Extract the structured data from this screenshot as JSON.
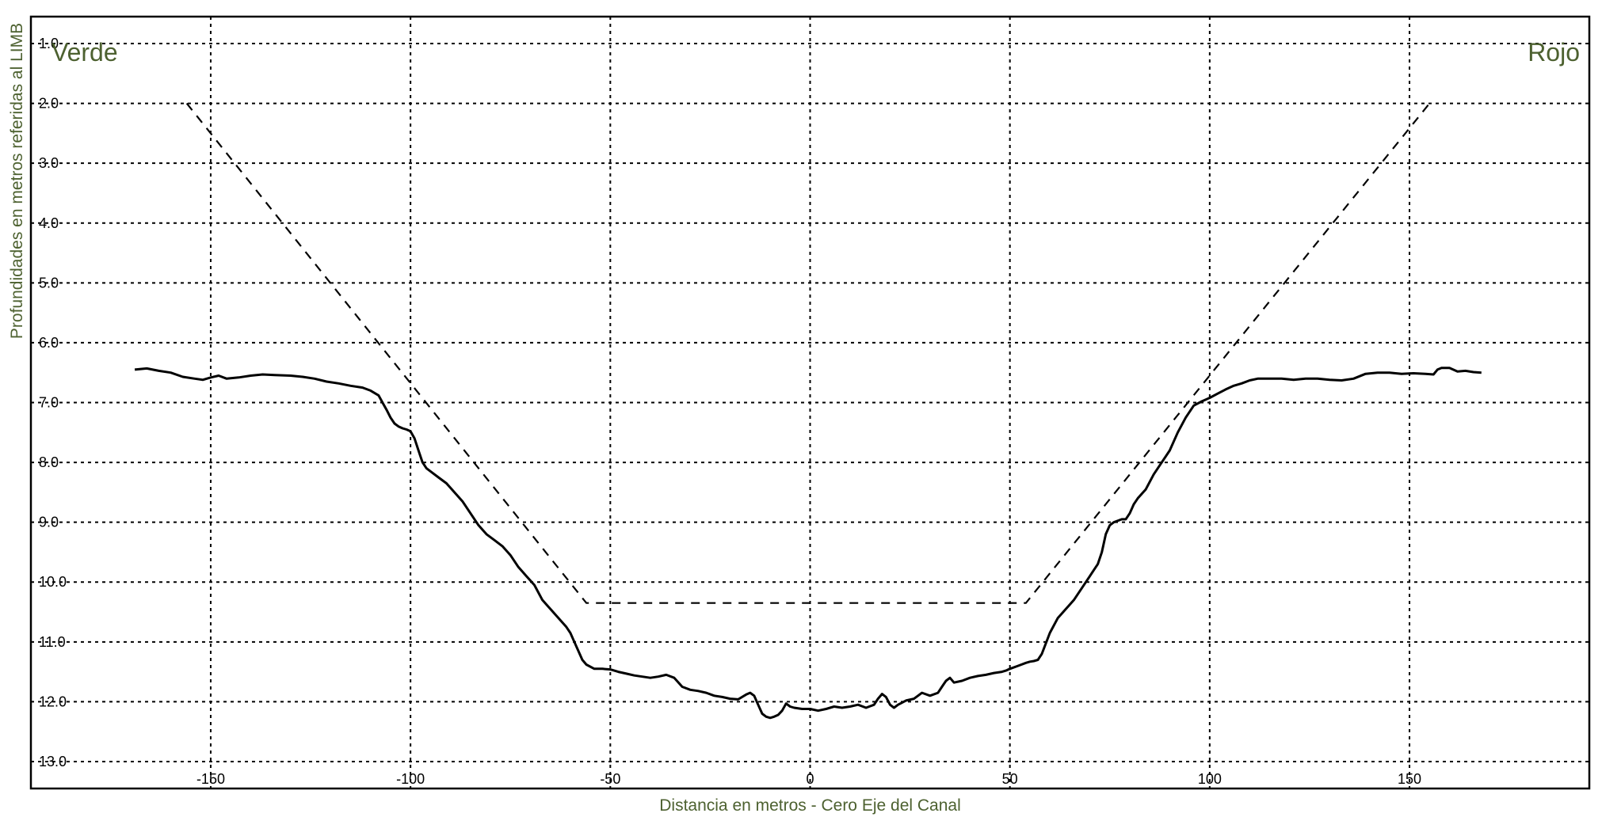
{
  "chart_data": {
    "type": "line",
    "xlabel": "Distancia en metros - Cero Eje del Canal",
    "ylabel": "Profundidades en metros referidas al LIMB",
    "left_label": "Verde",
    "right_label": "Rojo",
    "xlim": [
      -195,
      195
    ],
    "ylim": [
      13.45,
      0.55
    ],
    "y_inverted": true,
    "x_ticks": [
      -150,
      -100,
      -50,
      0,
      50,
      100,
      150
    ],
    "x_tick_labels": [
      "-150",
      "-100",
      "-50",
      "0",
      "50",
      "100",
      "150"
    ],
    "y_ticks": [
      1,
      2,
      3,
      4,
      5,
      6,
      7,
      8,
      9,
      10,
      11,
      12,
      13
    ],
    "y_tick_labels": [
      "1.0",
      "2.0",
      "3.0",
      "4.0",
      "5.0",
      "6.0",
      "7.0",
      "8.0",
      "9.0",
      "10.0",
      "11.0",
      "12.0",
      "13.0"
    ],
    "grid": true,
    "series": [
      {
        "style": "solid",
        "x": [
          -169,
          -166,
          -163,
          -160,
          -157,
          -154,
          -152,
          -150,
          -148,
          -146,
          -143,
          -140,
          -137,
          -134,
          -130,
          -127,
          -124,
          -121,
          -118,
          -115,
          -112,
          -110,
          -108,
          -107,
          -106,
          -105,
          -104,
          -103,
          -102,
          -101,
          -100,
          -99,
          -98,
          -97,
          -96,
          -95,
          -93,
          -91,
          -89,
          -87,
          -85,
          -83,
          -81,
          -79,
          -77,
          -75,
          -73,
          -71,
          -69,
          -67,
          -65,
          -63,
          -61,
          -60,
          -59,
          -58,
          -57,
          -56,
          -54,
          -52,
          -50,
          -48,
          -46,
          -44,
          -42,
          -40,
          -38,
          -36,
          -34,
          -32,
          -30,
          -28,
          -26,
          -24,
          -22,
          -20,
          -18,
          -16,
          -15,
          -14,
          -13,
          -12,
          -11,
          -10,
          -9,
          -8,
          -7,
          -6,
          -5,
          -4,
          -2,
          0,
          2,
          4,
          6,
          8,
          10,
          12,
          14,
          16,
          17,
          18,
          19,
          20,
          21,
          22,
          24,
          26,
          27,
          28,
          30,
          32,
          33,
          34,
          35,
          36,
          38,
          40,
          42,
          44,
          46,
          48,
          49,
          50,
          52,
          54,
          55,
          56,
          57,
          58,
          60,
          62,
          64,
          66,
          68,
          70,
          71,
          72,
          73,
          74,
          75,
          76,
          78,
          79,
          80,
          81,
          82,
          84,
          86,
          88,
          90,
          92,
          94,
          96,
          98,
          100,
          102,
          104,
          106,
          108,
          110,
          112,
          115,
          118,
          121,
          124,
          127,
          130,
          133,
          136,
          139,
          142,
          145,
          148,
          151,
          154,
          156,
          157,
          158,
          160,
          162,
          164,
          166,
          168
        ],
        "y": [
          6.45,
          6.43,
          6.47,
          6.5,
          6.57,
          6.6,
          6.62,
          6.58,
          6.55,
          6.6,
          6.58,
          6.55,
          6.53,
          6.54,
          6.55,
          6.57,
          6.6,
          6.65,
          6.68,
          6.72,
          6.75,
          6.8,
          6.88,
          7.0,
          7.12,
          7.25,
          7.35,
          7.4,
          7.43,
          7.45,
          7.48,
          7.6,
          7.8,
          8.0,
          8.1,
          8.15,
          8.25,
          8.35,
          8.5,
          8.65,
          8.85,
          9.05,
          9.2,
          9.3,
          9.4,
          9.55,
          9.75,
          9.9,
          10.05,
          10.3,
          10.45,
          10.6,
          10.75,
          10.85,
          11.0,
          11.15,
          11.3,
          11.38,
          11.45,
          11.45,
          11.46,
          11.5,
          11.53,
          11.56,
          11.58,
          11.6,
          11.58,
          11.55,
          11.6,
          11.75,
          11.8,
          11.82,
          11.85,
          11.9,
          11.92,
          11.95,
          11.96,
          11.88,
          11.85,
          11.9,
          12.05,
          12.2,
          12.25,
          12.27,
          12.25,
          12.22,
          12.15,
          12.03,
          12.08,
          12.1,
          12.12,
          12.12,
          12.15,
          12.12,
          12.08,
          12.1,
          12.08,
          12.05,
          12.1,
          12.05,
          11.95,
          11.87,
          11.92,
          12.05,
          12.1,
          12.05,
          11.98,
          11.95,
          11.9,
          11.85,
          11.9,
          11.85,
          11.75,
          11.65,
          11.6,
          11.68,
          11.65,
          11.6,
          11.57,
          11.55,
          11.52,
          11.5,
          11.48,
          11.45,
          11.4,
          11.35,
          11.33,
          11.32,
          11.3,
          11.2,
          10.85,
          10.6,
          10.45,
          10.3,
          10.1,
          9.9,
          9.8,
          9.7,
          9.5,
          9.2,
          9.05,
          9.0,
          8.95,
          8.95,
          8.85,
          8.7,
          8.6,
          8.45,
          8.2,
          8.0,
          7.8,
          7.5,
          7.25,
          7.05,
          6.98,
          6.92,
          6.85,
          6.78,
          6.72,
          6.68,
          6.63,
          6.6,
          6.6,
          6.6,
          6.62,
          6.6,
          6.6,
          6.62,
          6.63,
          6.6,
          6.52,
          6.5,
          6.5,
          6.52,
          6.51,
          6.52,
          6.53,
          6.45,
          6.42,
          6.42,
          6.48,
          6.47,
          6.49,
          6.5
        ]
      },
      {
        "style": "dashed",
        "x": [
          -156,
          -56,
          54,
          155
        ],
        "y": [
          2.0,
          10.35,
          10.35,
          2.0
        ]
      }
    ]
  }
}
